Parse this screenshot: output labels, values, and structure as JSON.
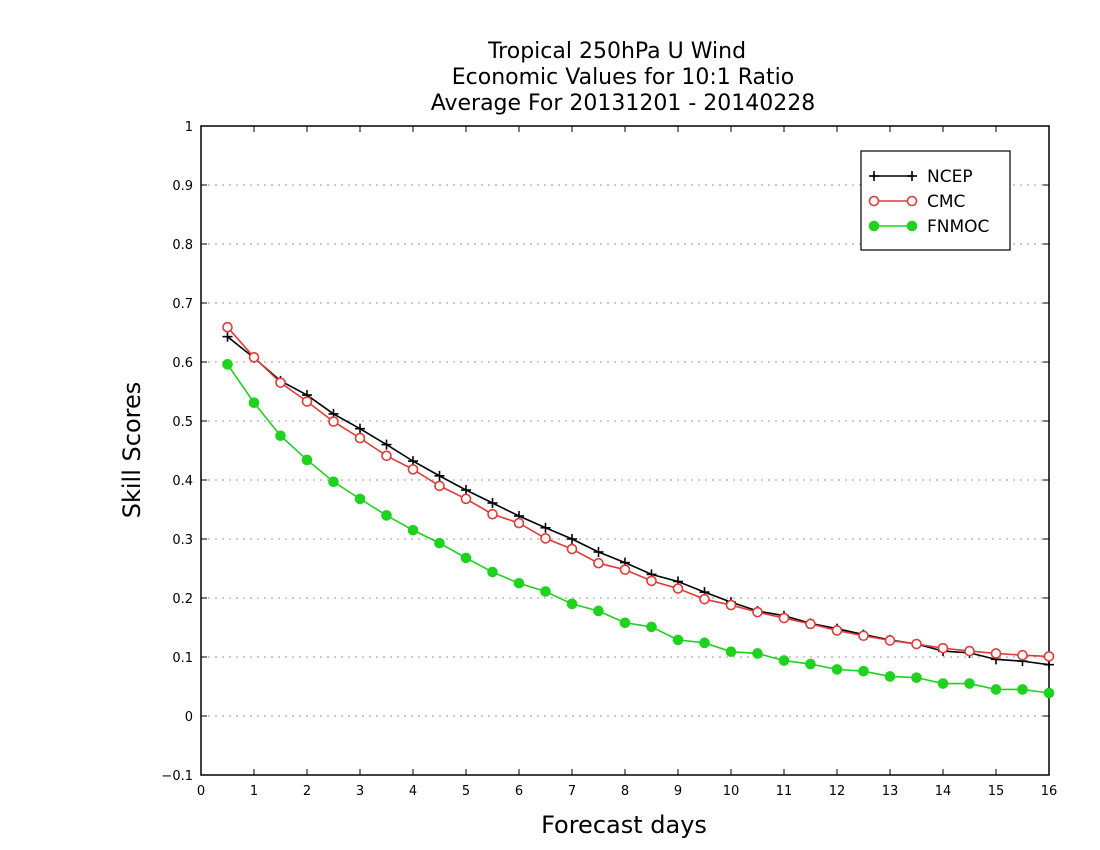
{
  "chart_data": {
    "type": "line",
    "title": [
      "Tropical 250hPa U Wind",
      "Economic Values for 10:1 Ratio",
      "Average For 20131201 - 20140228"
    ],
    "xlabel": "Forecast days",
    "ylabel": "Skill Scores",
    "xlim": [
      0,
      16
    ],
    "ylim": [
      -0.1,
      1
    ],
    "xticks": [
      "0",
      "1",
      "2",
      "3",
      "4",
      "5",
      "6",
      "7",
      "8",
      "9",
      "10",
      "11",
      "12",
      "13",
      "14",
      "15",
      "16"
    ],
    "yticks": [
      "−0.1",
      "0",
      "0.1",
      "0.2",
      "0.3",
      "0.4",
      "0.5",
      "0.6",
      "0.7",
      "0.8",
      "0.9",
      "1"
    ],
    "grid": true,
    "legend_position": "top-right",
    "x": [
      0.5,
      1,
      1.5,
      2,
      2.5,
      3,
      3.5,
      4,
      4.5,
      5,
      5.5,
      6,
      6.5,
      7,
      7.5,
      8,
      8.5,
      9,
      9.5,
      10,
      10.5,
      11,
      11.5,
      12,
      12.5,
      13,
      13.5,
      14,
      14.5,
      15,
      15.5,
      16
    ],
    "series": [
      {
        "name": "NCEP",
        "color": "#000000",
        "marker": "plus",
        "values": [
          0.643,
          0.607,
          0.568,
          0.544,
          0.512,
          0.487,
          0.46,
          0.432,
          0.407,
          0.383,
          0.361,
          0.339,
          0.319,
          0.3,
          0.278,
          0.26,
          0.24,
          0.228,
          0.21,
          0.193,
          0.178,
          0.17,
          0.157,
          0.148,
          0.138,
          0.129,
          0.122,
          0.11,
          0.107,
          0.096,
          0.093,
          0.087
        ]
      },
      {
        "name": "CMC",
        "color": "#e03c3c",
        "marker": "open-circle",
        "values": [
          0.659,
          0.608,
          0.565,
          0.533,
          0.499,
          0.471,
          0.441,
          0.418,
          0.39,
          0.368,
          0.342,
          0.327,
          0.301,
          0.283,
          0.259,
          0.248,
          0.229,
          0.216,
          0.198,
          0.188,
          0.176,
          0.166,
          0.156,
          0.145,
          0.136,
          0.128,
          0.122,
          0.115,
          0.11,
          0.106,
          0.103,
          0.101
        ]
      },
      {
        "name": "FNMOC",
        "color": "#1ed21e",
        "marker": "filled-circle",
        "values": [
          0.596,
          0.531,
          0.475,
          0.434,
          0.397,
          0.368,
          0.34,
          0.315,
          0.293,
          0.268,
          0.244,
          0.225,
          0.211,
          0.19,
          0.178,
          0.158,
          0.151,
          0.129,
          0.124,
          0.109,
          0.106,
          0.094,
          0.088,
          0.079,
          0.076,
          0.067,
          0.065,
          0.055,
          0.055,
          0.045,
          0.045,
          0.039
        ]
      }
    ]
  }
}
